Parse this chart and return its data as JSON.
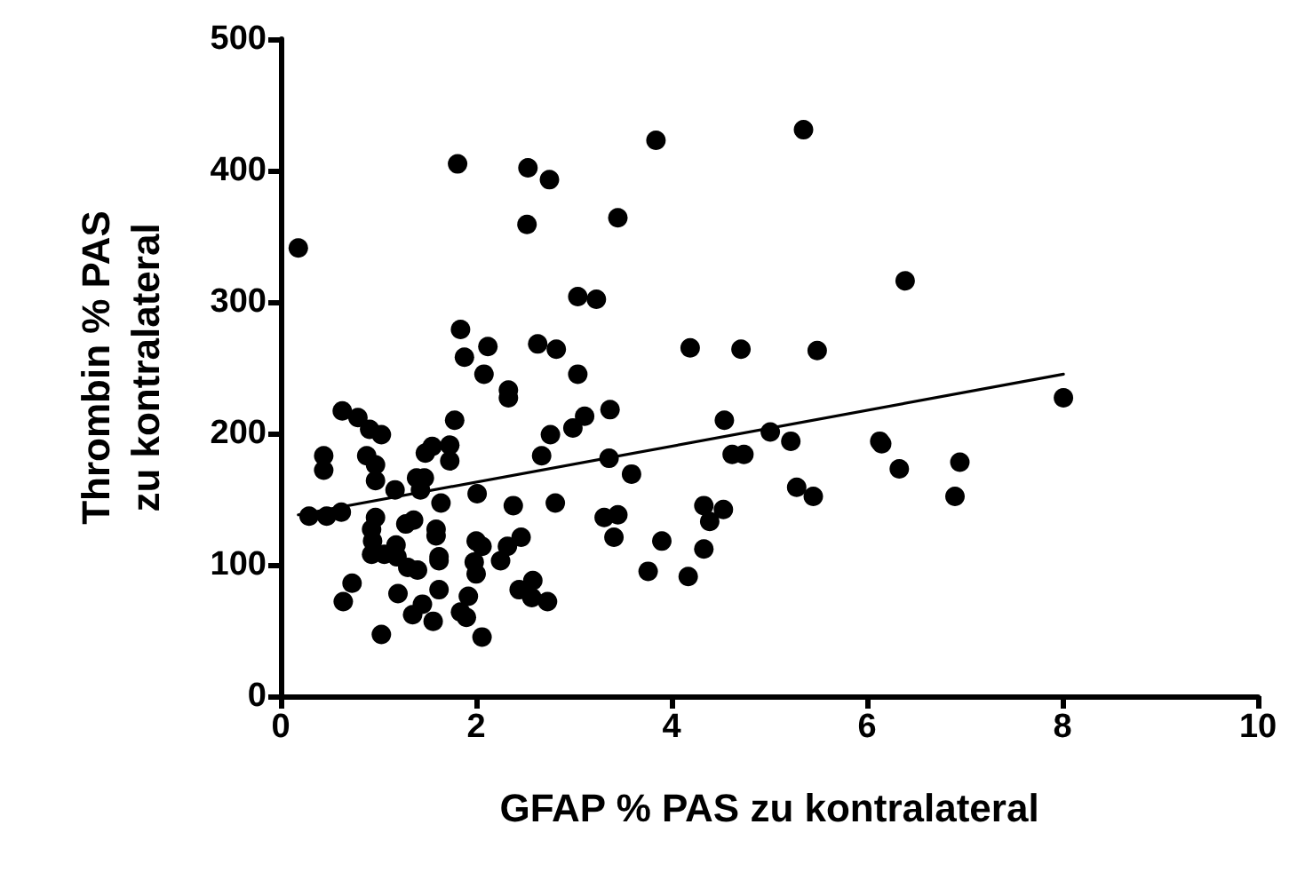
{
  "chart_data": {
    "type": "scatter",
    "xlabel": "GFAP % PAS zu kontralateral",
    "ylabel": "Thrombin % PAS\nzu kontralateral",
    "xlim": [
      0,
      10
    ],
    "xticks": [
      0,
      2,
      4,
      6,
      8,
      10
    ],
    "ylim": [
      0,
      500
    ],
    "yticks": [
      0,
      100,
      200,
      300,
      400,
      500
    ],
    "marker": "circle",
    "series": [
      {
        "color": "#000000",
        "x": [
          0.18,
          1.81,
          2.53,
          2.75,
          2.52,
          3.45,
          3.04,
          3.23,
          1.84,
          1.88,
          2.12,
          2.08,
          2.63,
          2.82,
          3.04,
          2.33,
          2.33,
          0.63,
          0.79,
          3.37,
          3.11,
          1.78,
          0.91,
          1.03,
          0.44,
          0.44,
          0.88,
          0.97,
          1.48,
          1.55,
          1.73,
          1.73,
          0.97,
          1.17,
          1.39,
          1.47,
          1.43,
          1.64,
          2.01,
          2.38,
          2.81,
          2.76,
          2.67,
          2.99,
          3.36,
          3.31,
          3.41,
          0.29,
          0.47,
          0.62,
          0.97,
          0.93,
          0.94,
          0.93,
          1.06,
          1.18,
          1.19,
          1.28,
          1.36,
          1.59,
          1.59,
          1.62,
          1.62,
          1.3,
          1.4,
          2.0,
          2.06,
          1.98,
          2.0,
          2.25,
          2.32,
          2.46,
          0.73,
          0.64,
          1.2,
          1.62,
          1.45,
          1.35,
          1.56,
          1.92,
          1.84,
          1.9,
          1.03,
          2.06,
          2.44,
          2.58,
          2.57,
          2.73,
          3.84,
          5.35,
          6.39,
          4.19,
          4.71,
          5.49,
          4.54,
          5.01,
          5.22,
          4.62,
          4.74,
          3.59,
          6.13,
          6.15,
          6.33,
          5.28,
          5.45,
          4.33,
          4.53,
          4.39,
          3.45,
          3.9,
          4.33,
          3.76,
          4.17,
          6.95,
          6.9,
          8.01
        ],
        "values": [
          341,
          405,
          402,
          393,
          359,
          364,
          304,
          302,
          279,
          258,
          266,
          245,
          268,
          264,
          245,
          233,
          227,
          217,
          212,
          218,
          213,
          210,
          203,
          199,
          183,
          172,
          183,
          176,
          185,
          190,
          191,
          179,
          164,
          157,
          166,
          166,
          157,
          147,
          154,
          145,
          147,
          199,
          183,
          204,
          181,
          136,
          121,
          137,
          137,
          140,
          136,
          127,
          118,
          108,
          108,
          115,
          106,
          131,
          134,
          127,
          122,
          106,
          103,
          98,
          96,
          118,
          114,
          102,
          93,
          103,
          114,
          121,
          86,
          72,
          78,
          81,
          70,
          62,
          57,
          76,
          64,
          60,
          47,
          45,
          81,
          88,
          75,
          72,
          423,
          431,
          316,
          265,
          264,
          263,
          210,
          201,
          194,
          184,
          184,
          169,
          194,
          192,
          173,
          159,
          152,
          145,
          142,
          133,
          138,
          118,
          112,
          95,
          91,
          178,
          152,
          227
        ]
      },
      {
        "type": "line",
        "color": "#000000",
        "line_style": "solid",
        "marker": "none",
        "x": [
          0.18,
          8.01
        ],
        "values": [
          138,
          245
        ]
      }
    ]
  }
}
